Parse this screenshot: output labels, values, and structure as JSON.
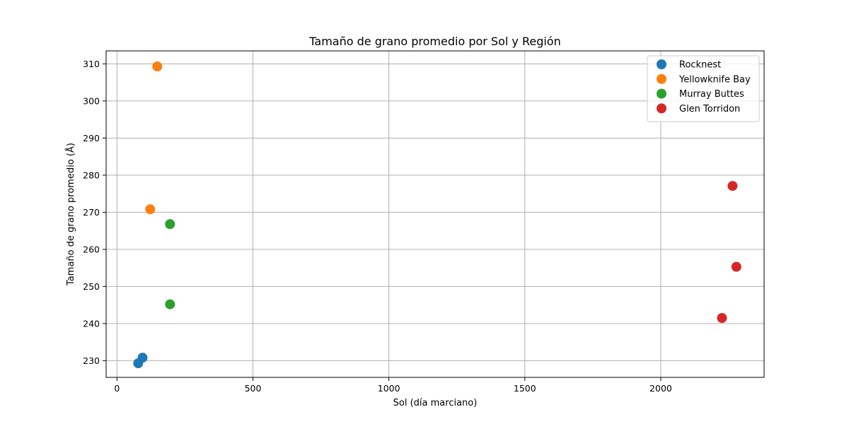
{
  "chart_data": {
    "type": "scatter",
    "title": "Tamaño de grano promedio por Sol y Región",
    "xlabel": "Sol (día marciano)",
    "ylabel": "Tamaño de grano promedio (Å)",
    "xlim": [
      -40,
      2380
    ],
    "ylim": [
      225.5,
      313.5
    ],
    "xticks": [
      0,
      500,
      1000,
      1500,
      2000
    ],
    "yticks": [
      230,
      240,
      250,
      260,
      270,
      280,
      290,
      300,
      310
    ],
    "grid": true,
    "legend_position": "top-right",
    "series": [
      {
        "name": "Rocknest",
        "color": "#1f77b4",
        "x": [
          78,
          94
        ],
        "y": [
          229.3,
          230.8
        ]
      },
      {
        "name": "Yellowknife Bay",
        "color": "#ff7f0e",
        "x": [
          122,
          148
        ],
        "y": [
          270.8,
          309.3
        ]
      },
      {
        "name": "Murray Buttes",
        "color": "#2ca02c",
        "x": [
          195,
          195
        ],
        "y": [
          266.8,
          245.2
        ]
      },
      {
        "name": "Glen Torridon",
        "color": "#d62728",
        "x": [
          2264,
          2278,
          2225
        ],
        "y": [
          277.1,
          255.3,
          241.5
        ]
      }
    ]
  }
}
